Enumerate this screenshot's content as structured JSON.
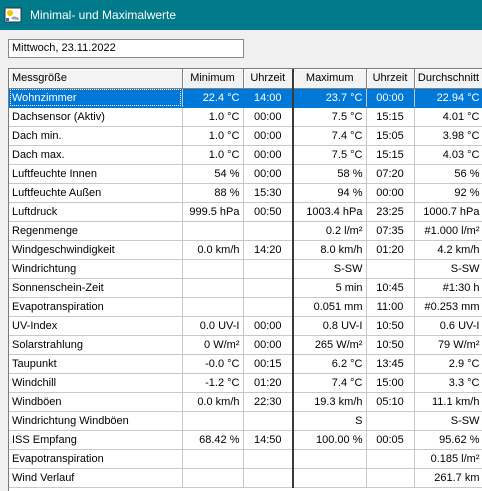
{
  "window": {
    "title": "Minimal- und Maximalwerte"
  },
  "date": "Mittwoch, 23.11.2022",
  "columns": [
    "Messgröße",
    "Minimum",
    "Uhrzeit",
    "Maximum",
    "Uhrzeit",
    "Durchschnitt"
  ],
  "rows": [
    [
      "Wohnzimmer",
      "22.4 °C",
      "14:00",
      "23.7 °C",
      "00:00",
      "22.94 °C"
    ],
    [
      "Dachsensor (Aktiv)",
      "1.0 °C",
      "00:00",
      "7.5 °C",
      "15:15",
      "4.01 °C"
    ],
    [
      "Dach min.",
      "1.0 °C",
      "00:00",
      "7.4 °C",
      "15:05",
      "3.98 °C"
    ],
    [
      "Dach max.",
      "1.0 °C",
      "00:00",
      "7.5 °C",
      "15:15",
      "4.03 °C"
    ],
    [
      "Luftfeuchte Innen",
      "54 %",
      "00:00",
      "58 %",
      "07:20",
      "56 %"
    ],
    [
      "Luftfeuchte Außen",
      "88 %",
      "15:30",
      "94 %",
      "00:00",
      "92 %"
    ],
    [
      "Luftdruck",
      "999.5 hPa",
      "00:50",
      "1003.4 hPa",
      "23:25",
      "1000.7 hPa"
    ],
    [
      "Regenmenge",
      "",
      "",
      "0.2 l/m²",
      "07:35",
      "#1.000 l/m²"
    ],
    [
      "Windgeschwindigkeit",
      "0.0 km/h",
      "14:20",
      "8.0 km/h",
      "01:20",
      "4.2 km/h"
    ],
    [
      "Windrichtung",
      "",
      "",
      "S-SW",
      "",
      "S-SW"
    ],
    [
      "Sonnenschein-Zeit",
      "",
      "",
      "5 min",
      "10:45",
      "#1:30 h"
    ],
    [
      "Evapotranspiration",
      "",
      "",
      "0.051 mm",
      "11:00",
      "#0.253 mm"
    ],
    [
      "UV-Index",
      "0.0 UV-I",
      "00:00",
      "0.8 UV-I",
      "10:50",
      "0.6 UV-I"
    ],
    [
      "Solarstrahlung",
      "0 W/m²",
      "00:00",
      "265 W/m²",
      "10:50",
      "79 W/m²"
    ],
    [
      "Taupunkt",
      "-0.0 °C",
      "00:15",
      "6.2 °C",
      "13:45",
      "2.9 °C"
    ],
    [
      "Windchill",
      "-1.2 °C",
      "01:20",
      "7.4 °C",
      "15:00",
      "3.3 °C"
    ],
    [
      "Windböen",
      "0.0 km/h",
      "22:30",
      "19.3 km/h",
      "05:10",
      "11.1 km/h"
    ],
    [
      "Windrichtung Windböen",
      "",
      "",
      "S",
      "",
      "S-SW"
    ],
    [
      "ISS Empfang",
      "68.42 %",
      "14:50",
      "100.00 %",
      "00:05",
      "95.62 %"
    ],
    [
      "Evapotranspiration",
      "",
      "",
      "",
      "",
      "0.185 l/m²"
    ],
    [
      "Wind Verlauf",
      "",
      "",
      "",
      "",
      "261.7 km"
    ]
  ],
  "selected_row": 0,
  "icons": {
    "app": "weather-station-icon"
  }
}
